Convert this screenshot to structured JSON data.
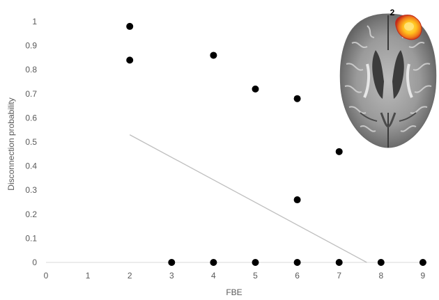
{
  "chart_data": {
    "type": "scatter",
    "title": "",
    "xlabel": "FBE",
    "ylabel": "Disconnection probability",
    "xlim": [
      0,
      9
    ],
    "ylim": [
      0,
      1
    ],
    "xticks": [
      "0",
      "1",
      "2",
      "3",
      "4",
      "5",
      "6",
      "7",
      "8",
      "9"
    ],
    "yticks": [
      "0",
      "0.1",
      "0.2",
      "0.3",
      "0.4",
      "0.5",
      "0.6",
      "0.7",
      "0.8",
      "0.9",
      "1"
    ],
    "grid": false,
    "legend": "none",
    "points": [
      {
        "x": 2,
        "y": 0.98
      },
      {
        "x": 2,
        "y": 0.84
      },
      {
        "x": 3,
        "y": 0
      },
      {
        "x": 4,
        "y": 0.86
      },
      {
        "x": 4,
        "y": 0
      },
      {
        "x": 5,
        "y": 0.72
      },
      {
        "x": 5,
        "y": 0
      },
      {
        "x": 6,
        "y": 0.68
      },
      {
        "x": 6,
        "y": 0.26
      },
      {
        "x": 6,
        "y": 0
      },
      {
        "x": 7,
        "y": 0.46
      },
      {
        "x": 7,
        "y": 0
      },
      {
        "x": 8,
        "y": 0
      },
      {
        "x": 9,
        "y": 0
      }
    ],
    "trendline": {
      "x": [
        2,
        7.66
      ],
      "y": [
        0.53,
        0
      ]
    },
    "colors": {
      "points": "#000000",
      "trendline": "#bfbfbf",
      "axis": "#d9d9d9",
      "text": "#595959"
    }
  },
  "inset": {
    "label": "2",
    "icon": "brain-axial-slice-icon",
    "colors": {
      "brain_dark": "#4a4a4a",
      "brain_mid": "#8a8a8a",
      "brain_light": "#c8c8c8",
      "activation_outer": "#c0281a",
      "activation_mid": "#f07a1a",
      "activation_inner": "#ffd21e"
    }
  }
}
